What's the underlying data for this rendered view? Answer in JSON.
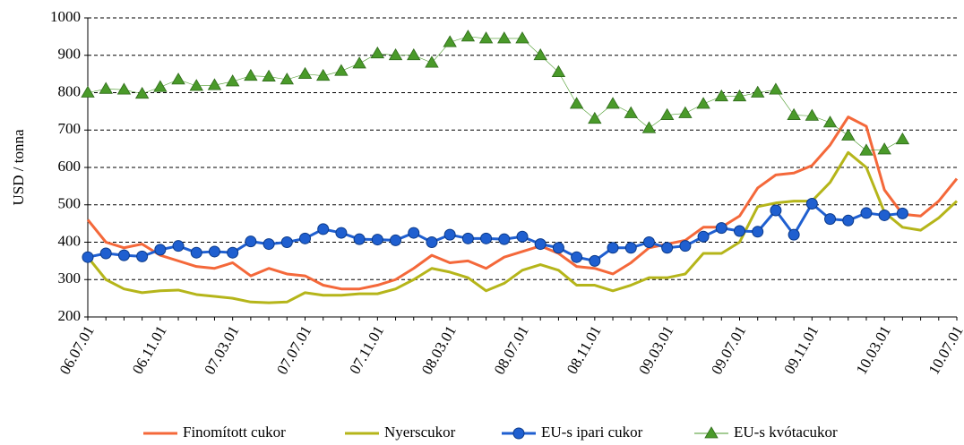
{
  "chart_data": {
    "type": "line",
    "y_label": "USD / tonna",
    "categories": [
      "06.07.01",
      null,
      null,
      null,
      "06.11.01",
      null,
      null,
      null,
      "07.03.01",
      null,
      null,
      null,
      "07.07.01",
      null,
      null,
      null,
      "07.11.01",
      null,
      null,
      null,
      "08.03.01",
      null,
      null,
      null,
      "08.07.01",
      null,
      null,
      null,
      "08.11.01",
      null,
      null,
      null,
      "09.03.01",
      null,
      null,
      null,
      "09.07.01",
      null,
      null,
      null,
      "09.11.01",
      null,
      null,
      null,
      "10.03.01",
      null,
      null,
      null,
      "10.07.01"
    ],
    "series": [
      {
        "name": "Finomított cukor",
        "color": "#f4683a",
        "marker": "none",
        "line_width": 3,
        "values": [
          460,
          400,
          385,
          395,
          365,
          350,
          335,
          330,
          345,
          310,
          330,
          315,
          310,
          285,
          275,
          275,
          285,
          300,
          330,
          365,
          345,
          350,
          330,
          360,
          375,
          390,
          370,
          335,
          330,
          315,
          345,
          385,
          395,
          405,
          440,
          440,
          470,
          545,
          580,
          585,
          605,
          660,
          735,
          710,
          540,
          475,
          470,
          510,
          570
        ]
      },
      {
        "name": "Nyerscukor",
        "color": "#b5b51a",
        "marker": "none",
        "line_width": 3,
        "values": [
          360,
          300,
          275,
          265,
          270,
          272,
          260,
          255,
          250,
          240,
          238,
          240,
          265,
          258,
          258,
          262,
          262,
          275,
          300,
          330,
          320,
          305,
          270,
          290,
          325,
          340,
          325,
          285,
          285,
          270,
          285,
          305,
          305,
          315,
          370,
          370,
          400,
          495,
          505,
          510,
          510,
          560,
          640,
          600,
          480,
          440,
          432,
          465,
          510
        ]
      },
      {
        "name": "EU-s ipari cukor",
        "color": "#1f5fd0",
        "marker": "circle",
        "line_width": 3,
        "values": [
          360,
          370,
          365,
          362,
          380,
          390,
          372,
          375,
          372,
          402,
          395,
          400,
          410,
          435,
          425,
          408,
          407,
          405,
          425,
          400,
          420,
          410,
          410,
          408,
          415,
          395,
          385,
          360,
          350,
          385,
          385,
          400,
          385,
          390,
          415,
          438,
          430,
          428,
          485,
          420,
          503,
          462,
          458,
          478,
          472,
          477,
          null,
          null,
          null
        ]
      },
      {
        "name": "EU-s kvótacukor",
        "color": "#4a9a2a",
        "marker": "triangle",
        "line_width": 0.6,
        "values": [
          800,
          810,
          808,
          797,
          815,
          835,
          818,
          820,
          830,
          845,
          843,
          835,
          850,
          845,
          858,
          878,
          905,
          900,
          900,
          880,
          935,
          950,
          945,
          945,
          945,
          900,
          855,
          770,
          730,
          770,
          745,
          705,
          740,
          745,
          770,
          790,
          790,
          800,
          808,
          740,
          738,
          720,
          685,
          645,
          648,
          675,
          null,
          null,
          null
        ]
      }
    ],
    "ylim": [
      200,
      1000
    ],
    "yticks": [
      200,
      300,
      400,
      500,
      600,
      700,
      800,
      900,
      1000
    ],
    "grid": true,
    "legend": "bottom"
  }
}
